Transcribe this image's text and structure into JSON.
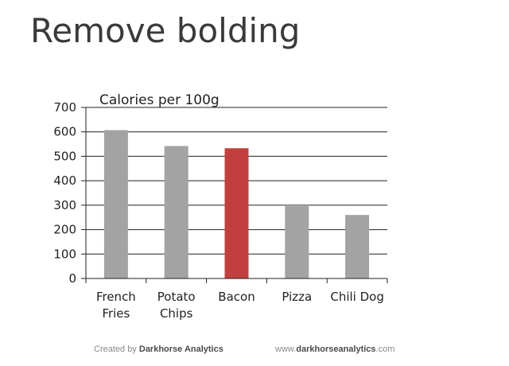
{
  "page": {
    "title": "Remove bolding"
  },
  "chart_data": {
    "type": "bar",
    "title": "Calories per 100g",
    "xlabel": "",
    "ylabel": "",
    "categories": [
      [
        "French",
        "Fries"
      ],
      [
        "Potato",
        "Chips"
      ],
      [
        "Bacon"
      ],
      [
        "Pizza"
      ],
      [
        "Chili Dog"
      ]
    ],
    "values": [
      607,
      542,
      533,
      296,
      260
    ],
    "ylim": [
      0,
      700
    ],
    "yticks": [
      0,
      100,
      200,
      300,
      400,
      500,
      600,
      700
    ],
    "grid": true,
    "legend": "none",
    "colors": {
      "default": "#a3a3a3",
      "highlight": "#c1403f",
      "grid": "#222222",
      "text": "#222222"
    },
    "highlight_index": 2
  },
  "footer": {
    "left_prefix": "Created by ",
    "left_brand": "Darkhorse Analytics",
    "right_prefix": "www.",
    "right_brand": "darkhorseanalytics",
    "right_suffix": ".com"
  }
}
